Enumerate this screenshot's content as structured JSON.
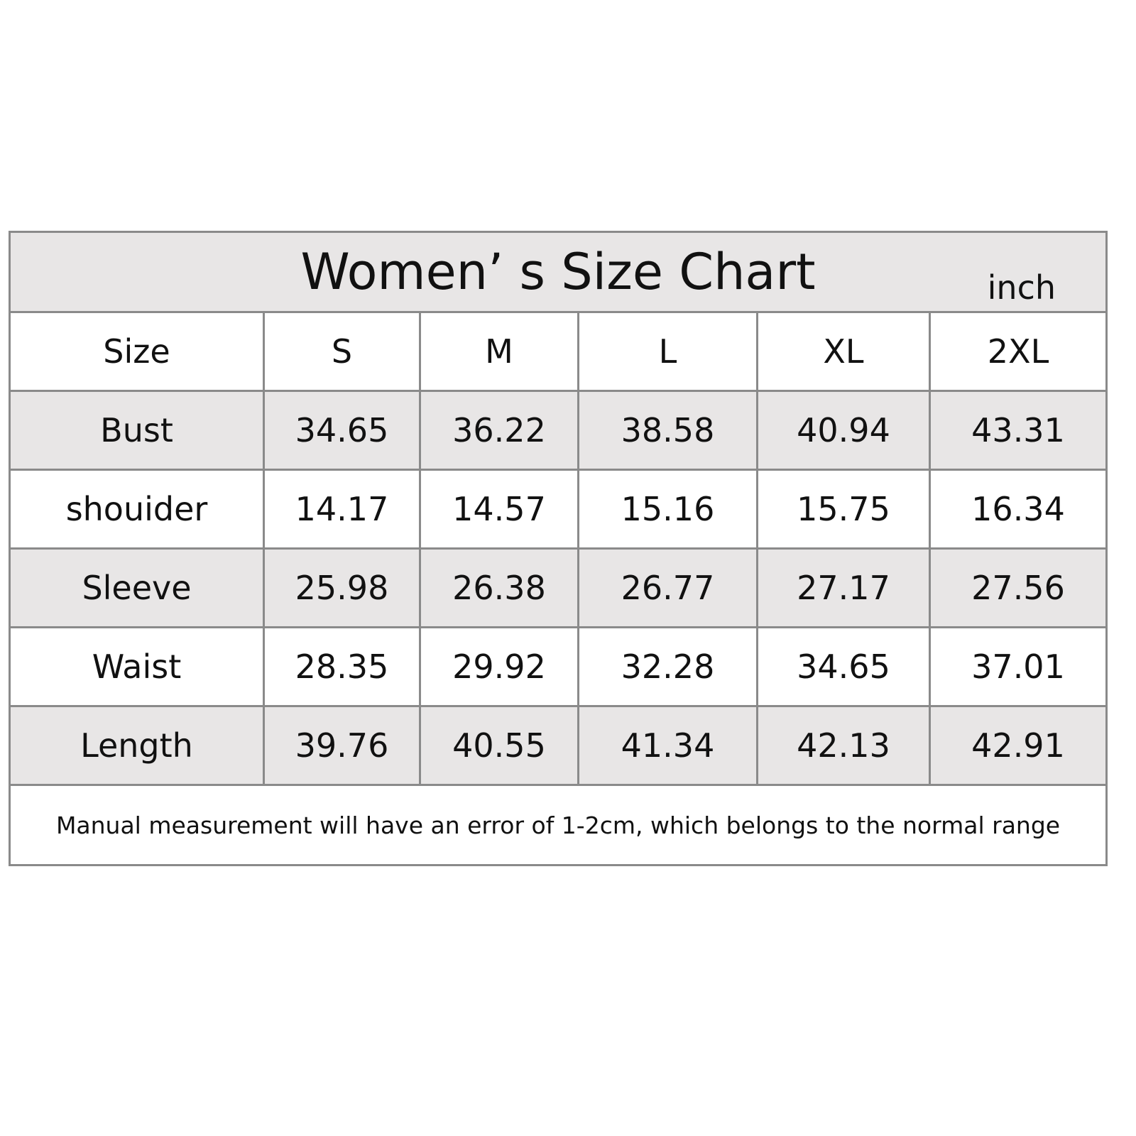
{
  "title": "Women’ s Size Chart",
  "unit": "inch",
  "table": {
    "header": [
      "Size",
      "S",
      "M",
      "L",
      "XL",
      "2XL"
    ],
    "rows": [
      [
        "Bust",
        34.65,
        36.22,
        38.58,
        40.94,
        43.31
      ],
      [
        "shouider",
        14.17,
        14.57,
        15.16,
        15.75,
        16.34
      ],
      [
        "Sleeve",
        25.98,
        26.38,
        26.77,
        27.17,
        27.56
      ],
      [
        "Waist",
        28.35,
        29.92,
        32.28,
        34.65,
        37.01
      ],
      [
        "Length",
        39.76,
        40.55,
        41.34,
        42.13,
        42.91
      ]
    ]
  },
  "note": "Manual measurement will have an error of 1-2cm, which belongs to the normal range"
}
